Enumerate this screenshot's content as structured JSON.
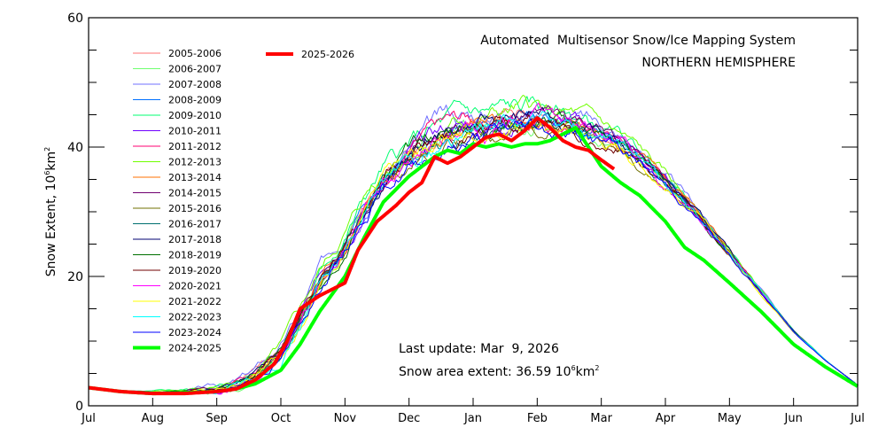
{
  "chart_data": {
    "type": "line",
    "title": "Automated  Multisensor Snow/Ice Mapping System",
    "subtitle": "NORTHERN HEMISPHERE",
    "ylabel": "Snow Extent, 10⁶km²",
    "ylabel_parts": {
      "text": "Snow Extent, 10",
      "sup1": "6",
      "unit": "km",
      "sup2": "2"
    },
    "ylim": [
      0,
      60
    ],
    "yticks_major": [
      0,
      20,
      40,
      60
    ],
    "yticks_minor_step": 5,
    "xlim": [
      0,
      12
    ],
    "xticks": [
      {
        "x": 0,
        "label": "Jul"
      },
      {
        "x": 1,
        "label": "Aug"
      },
      {
        "x": 2,
        "label": "Sep"
      },
      {
        "x": 3,
        "label": "Oct"
      },
      {
        "x": 4,
        "label": "Nov"
      },
      {
        "x": 5,
        "label": "Dec"
      },
      {
        "x": 6,
        "label": "Jan"
      },
      {
        "x": 7,
        "label": "Feb"
      },
      {
        "x": 8,
        "label": "Mar"
      },
      {
        "x": 9,
        "label": "Apr"
      },
      {
        "x": 10,
        "label": "May"
      },
      {
        "x": 11,
        "label": "Jun"
      },
      {
        "x": 12,
        "label": "Jul"
      }
    ],
    "x_units": "months since Jul 1",
    "climatology_x": [
      0,
      0.5,
      1,
      1.5,
      2,
      2.3,
      2.6,
      3,
      3.3,
      3.6,
      4,
      4.3,
      4.6,
      5,
      5.3,
      5.6,
      6,
      6.3,
      6.6,
      7,
      7.3,
      7.6,
      8,
      8.3,
      8.6,
      9,
      9.5,
      10,
      10.5,
      11,
      11.5,
      12
    ],
    "series": [
      {
        "name": "2005-2006",
        "color": "#ff7070",
        "width": 1,
        "offset": 0.5,
        "noise": 1.2,
        "seed": 1
      },
      {
        "name": "2006-2007",
        "color": "#70ff70",
        "width": 1,
        "offset": -0.5,
        "noise": 1.3,
        "seed": 2
      },
      {
        "name": "2007-2008",
        "color": "#7070ff",
        "width": 1,
        "offset": 2.5,
        "noise": 1.4,
        "seed": 3
      },
      {
        "name": "2008-2009",
        "color": "#0070ff",
        "width": 1,
        "offset": 0.3,
        "noise": 1.1,
        "seed": 4
      },
      {
        "name": "2009-2010",
        "color": "#00ff70",
        "width": 1,
        "offset": 1.8,
        "noise": 1.4,
        "seed": 5
      },
      {
        "name": "2010-2011",
        "color": "#7000ff",
        "width": 1,
        "offset": 0.8,
        "noise": 1.2,
        "seed": 6
      },
      {
        "name": "2011-2012",
        "color": "#ff0070",
        "width": 1,
        "offset": 1.2,
        "noise": 1.2,
        "seed": 7
      },
      {
        "name": "2012-2013",
        "color": "#70ff00",
        "width": 1,
        "offset": 1.5,
        "noise": 1.3,
        "seed": 8
      },
      {
        "name": "2013-2014",
        "color": "#ff7000",
        "width": 1,
        "offset": 0.2,
        "noise": 1.2,
        "seed": 9
      },
      {
        "name": "2014-2015",
        "color": "#700070",
        "width": 1,
        "offset": 0.6,
        "noise": 1.1,
        "seed": 10
      },
      {
        "name": "2015-2016",
        "color": "#707000",
        "width": 1,
        "offset": -0.8,
        "noise": 1.1,
        "seed": 11
      },
      {
        "name": "2016-2017",
        "color": "#007070",
        "width": 1,
        "offset": 0.1,
        "noise": 1.2,
        "seed": 12
      },
      {
        "name": "2017-2018",
        "color": "#000070",
        "width": 1,
        "offset": 0.9,
        "noise": 1.1,
        "seed": 13
      },
      {
        "name": "2018-2019",
        "color": "#007000",
        "width": 1,
        "offset": 0.4,
        "noise": 1.2,
        "seed": 14
      },
      {
        "name": "2019-2020",
        "color": "#700000",
        "width": 1,
        "offset": 0.0,
        "noise": 1.2,
        "seed": 15
      },
      {
        "name": "2020-2021",
        "color": "#ff00ff",
        "width": 1,
        "offset": -0.3,
        "noise": 1.3,
        "seed": 16
      },
      {
        "name": "2021-2022",
        "color": "#ffff00",
        "width": 1,
        "offset": -0.2,
        "noise": 1.2,
        "seed": 17
      },
      {
        "name": "2022-2023",
        "color": "#00ffff",
        "width": 1,
        "offset": -0.6,
        "noise": 1.3,
        "seed": 18
      },
      {
        "name": "2023-2024",
        "color": "#0000ff",
        "width": 1,
        "offset": -1.0,
        "noise": 1.2,
        "seed": 19
      },
      {
        "name": "2024-2025",
        "color": "#00ff00",
        "width": 4,
        "x": [
          0,
          0.5,
          1,
          1.5,
          2,
          2.3,
          2.6,
          3,
          3.3,
          3.6,
          4,
          4.3,
          4.6,
          5,
          5.2,
          5.4,
          5.6,
          5.8,
          6,
          6.2,
          6.4,
          6.6,
          6.8,
          7,
          7.2,
          7.4,
          7.6,
          7.8,
          8,
          8.3,
          8.6,
          9,
          9.3,
          9.6,
          10,
          10.5,
          11,
          11.5,
          12
        ],
        "values": [
          2.8,
          2.2,
          1.9,
          2.0,
          2.2,
          2.6,
          3.4,
          5.5,
          9.5,
          14.5,
          20.0,
          26.0,
          31.5,
          35.5,
          37.0,
          38.5,
          39.5,
          39.0,
          40.5,
          40.0,
          40.5,
          40.0,
          40.5,
          40.5,
          41.0,
          42.0,
          43.0,
          40.0,
          37.0,
          34.5,
          32.5,
          28.5,
          24.5,
          22.5,
          19.0,
          14.5,
          9.5,
          6.0,
          3.0
        ]
      },
      {
        "name": "2025-2026",
        "color": "#ff0000",
        "width": 4,
        "x": [
          0,
          0.5,
          1,
          1.5,
          2,
          2.3,
          2.6,
          2.9,
          3.1,
          3.3,
          3.6,
          4.0,
          4.2,
          4.5,
          4.8,
          5.0,
          5.2,
          5.4,
          5.6,
          5.8,
          6.0,
          6.2,
          6.4,
          6.6,
          6.8,
          7.0,
          7.2,
          7.4,
          7.6,
          7.8,
          8.0,
          8.2
        ],
        "values": [
          2.8,
          2.2,
          1.9,
          1.9,
          2.2,
          2.6,
          4.0,
          6.5,
          10.0,
          15.0,
          17.0,
          19.0,
          24.0,
          28.5,
          31.0,
          33.0,
          34.5,
          38.5,
          37.5,
          38.5,
          40.0,
          41.5,
          42.0,
          41.0,
          42.5,
          44.5,
          43.0,
          41.0,
          40.0,
          39.5,
          38.0,
          36.6
        ]
      }
    ],
    "climatology_mean": [
      2.8,
      2.3,
      2.0,
      2.1,
      2.4,
      3.0,
      4.5,
      8.0,
      13.0,
      19.0,
      25.0,
      30.5,
      35.0,
      38.0,
      40.0,
      41.5,
      42.5,
      43.0,
      43.5,
      44.0,
      43.5,
      43.0,
      41.5,
      40.0,
      38.0,
      34.5,
      29.5,
      23.5,
      17.5,
      11.5,
      7.0,
      3.2
    ],
    "legend": {
      "placement": "top-left",
      "columns": 2
    },
    "annotations": {
      "last_update_label": "Last update:",
      "last_update_value": "Mar  9, 2026",
      "extent_label": "Snow area extent:",
      "extent_value": "36.59",
      "extent_unit_base": "10",
      "extent_unit_sup1": "6",
      "extent_unit_km": "km",
      "extent_unit_sup2": "2"
    },
    "grid": false
  }
}
